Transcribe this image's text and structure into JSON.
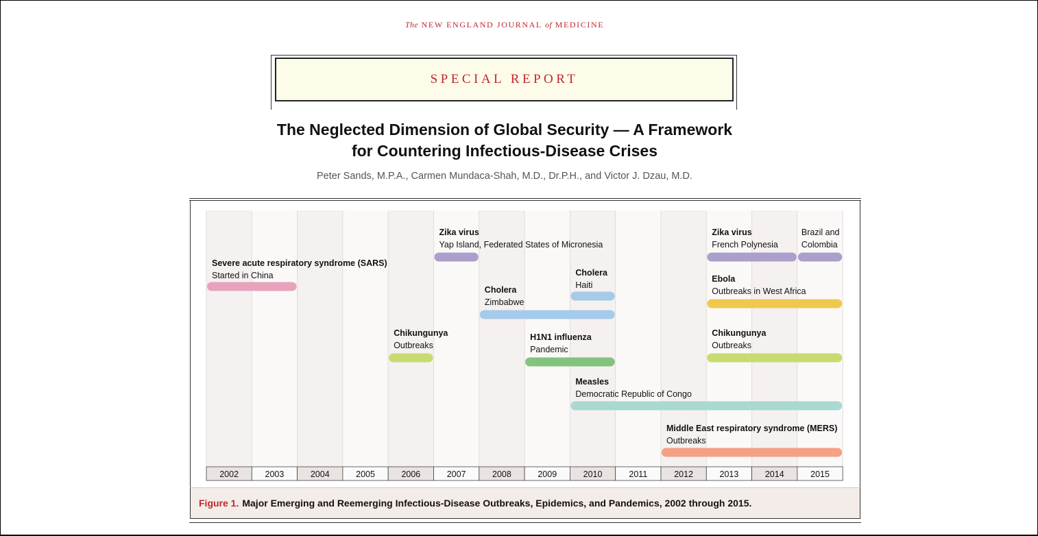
{
  "journal": {
    "the": "The",
    "name1": "NEW ENGLAND JOURNAL",
    "of": "of",
    "name2": "MEDICINE"
  },
  "section_label": "SPECIAL REPORT",
  "article": {
    "title_line1": "The Neglected Dimension of Global Security — A Framework",
    "title_line2": "for Countering Infectious-Disease Crises",
    "authors": "Peter Sands, M.P.A., Carmen Mundaca-Shah, M.D., Dr.P.H., and Victor J. Dzau, M.D."
  },
  "figure": {
    "label": "Figure 1.",
    "caption": "Major Emerging and Reemerging Infectious-Disease Outbreaks, Epidemics, and Pandemics, 2002 through 2015."
  },
  "chart_data": {
    "type": "timeline",
    "years": [
      "2002",
      "2003",
      "2004",
      "2005",
      "2006",
      "2007",
      "2008",
      "2009",
      "2010",
      "2011",
      "2012",
      "2013",
      "2014",
      "2015"
    ],
    "events": [
      {
        "name": "Severe acute respiratory syndrome (SARS)",
        "detail": "Started in China",
        "start": 2002,
        "end": 2003,
        "color": "#e8a3bc"
      },
      {
        "name": "Zika virus",
        "detail": "Yap Island, Federated States of Micronesia",
        "start": 2007,
        "end": 2007,
        "color": "#ad9fcb"
      },
      {
        "name": "Cholera",
        "detail": "Zimbabwe",
        "start": 2008,
        "end": 2010,
        "color": "#a5cbe9"
      },
      {
        "name": "Cholera",
        "detail": "Haiti",
        "start": 2010,
        "end": 2010,
        "color": "#a5cbe9"
      },
      {
        "name": "Chikungunya",
        "detail": "Outbreaks",
        "start": 2006,
        "end": 2006,
        "color": "#c8db71"
      },
      {
        "name": "H1N1 influenza",
        "detail": "Pandemic",
        "start": 2009,
        "end": 2010,
        "color": "#82c37d"
      },
      {
        "name": "Measles",
        "detail": "Democratic Republic of Congo",
        "start": 2010,
        "end": 2015,
        "color": "#a9d9d0"
      },
      {
        "name": "Zika virus",
        "detail": "French Polynesia",
        "start": 2013,
        "end": 2014,
        "color": "#ad9fcb"
      },
      {
        "name": "",
        "detail": "Brazil and Colombia",
        "start": 2015,
        "end": 2015,
        "color": "#ad9fcb"
      },
      {
        "name": "Ebola",
        "detail": "Outbreaks in West Africa",
        "start": 2013,
        "end": 2015,
        "color": "#efc94e"
      },
      {
        "name": "Chikungunya",
        "detail": "Outbreaks",
        "start": 2013,
        "end": 2015,
        "color": "#c8db71"
      },
      {
        "name": "Middle East respiratory syndrome (MERS)",
        "detail": "Outbreaks",
        "start": 2012,
        "end": 2015,
        "color": "#f4a185"
      }
    ]
  }
}
